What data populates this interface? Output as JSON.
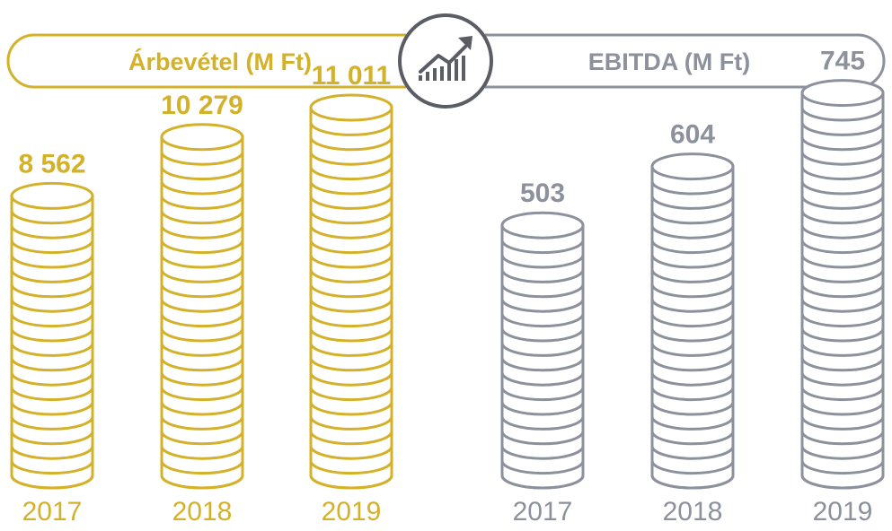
{
  "chart_data": [
    {
      "type": "bar",
      "title": "Árbevétel (M Ft)",
      "categories": [
        "2017",
        "2018",
        "2019"
      ],
      "values": [
        8562,
        10279,
        11011
      ],
      "value_labels": [
        "8 562",
        "10 279",
        "11 011"
      ],
      "color": "#d4b12a",
      "grid": false
    },
    {
      "type": "bar",
      "title": "EBITDA (M Ft)",
      "categories": [
        "2017",
        "2018",
        "2019"
      ],
      "values": [
        503,
        604,
        745
      ],
      "value_labels": [
        "503",
        "604",
        "745"
      ],
      "color": "#8c919c",
      "grid": false
    }
  ],
  "center_icon": "growth-chart-icon",
  "colors": {
    "revenue": "#d4b12a",
    "ebitda": "#8c919c",
    "icon": "#5a5d64"
  }
}
